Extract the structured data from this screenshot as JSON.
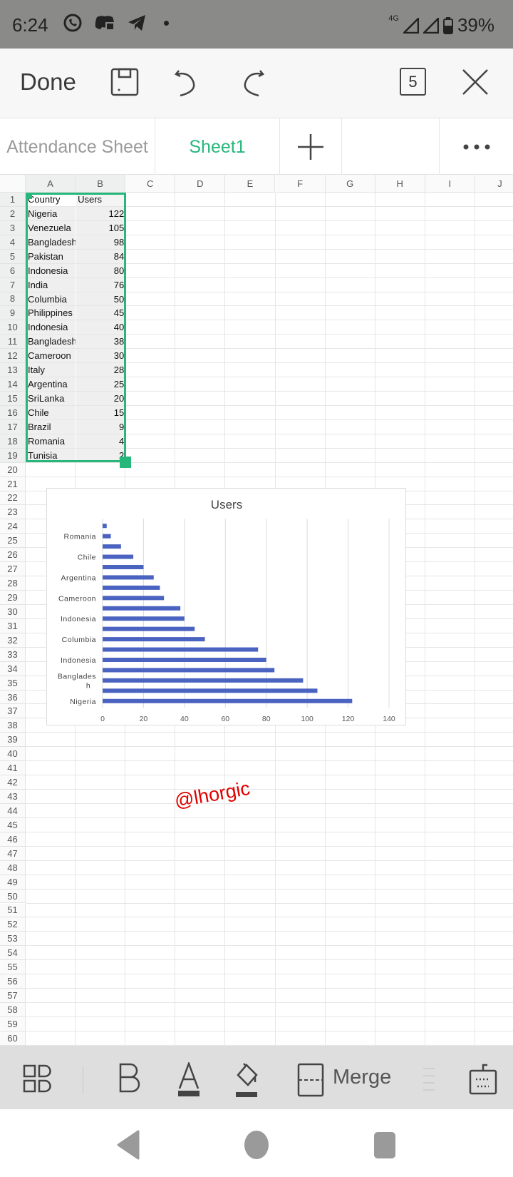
{
  "status_bar": {
    "time": "6:24",
    "network": "4G",
    "battery": "39%",
    "icons": [
      "whatsapp-icon",
      "discord-icon",
      "telegram-icon",
      "dot-icon",
      "signal-icon",
      "battery-icon"
    ]
  },
  "toolbar": {
    "done_label": "Done",
    "sheet_count": "5"
  },
  "tabs": [
    {
      "label": "Attendance Sheet",
      "active": false
    },
    {
      "label": "Sheet1",
      "active": true
    }
  ],
  "colors": {
    "accent": "#27b77b",
    "bar": "#4a62c0",
    "watermark": "#e00000"
  },
  "columns": [
    "A",
    "B",
    "C",
    "D",
    "E",
    "F",
    "G",
    "H",
    "I",
    "J"
  ],
  "rows": [
    "1",
    "2",
    "3",
    "4",
    "5",
    "6",
    "7",
    "8",
    "9",
    "10",
    "11",
    "12",
    "13",
    "14",
    "15",
    "16",
    "17",
    "18",
    "19",
    "20",
    "21",
    "22",
    "23",
    "24",
    "25",
    "26",
    "27",
    "28",
    "29",
    "30",
    "31",
    "32",
    "33",
    "34",
    "35",
    "36",
    "37",
    "38",
    "39",
    "40",
    "41",
    "42",
    "43",
    "44",
    "45",
    "46",
    "47",
    "48",
    "49",
    "50",
    "51",
    "52",
    "53",
    "54",
    "55",
    "56",
    "57",
    "58",
    "59",
    "60"
  ],
  "sheet": {
    "header": [
      "Country",
      "Users"
    ],
    "data": [
      [
        "Nigeria",
        "122"
      ],
      [
        "Venezuela",
        "105"
      ],
      [
        "Bangladesh",
        "98"
      ],
      [
        "Pakistan",
        "84"
      ],
      [
        "Indonesia",
        "80"
      ],
      [
        "India",
        "76"
      ],
      [
        "Columbia",
        "50"
      ],
      [
        "Philippines",
        "45"
      ],
      [
        "Indonesia",
        "40"
      ],
      [
        "Bangladesh",
        "38"
      ],
      [
        "Cameroon",
        "30"
      ],
      [
        "Italy",
        "28"
      ],
      [
        "Argentina",
        "25"
      ],
      [
        "SriLanka",
        "20"
      ],
      [
        "Chile",
        "15"
      ],
      [
        "Brazil",
        "9"
      ],
      [
        "Romania",
        "4"
      ],
      [
        "Tunisia",
        "2"
      ]
    ]
  },
  "chart_data": {
    "type": "bar",
    "orientation": "horizontal",
    "title": "Users",
    "categories": [
      "Nigeria",
      "Venezuela",
      "Bangladesh",
      "Pakistan",
      "Indonesia",
      "India",
      "Columbia",
      "Philippines",
      "Indonesia",
      "Bangladesh",
      "Cameroon",
      "Italy",
      "Argentina",
      "SriLanka",
      "Chile",
      "Brazil",
      "Romania",
      "Tunisia"
    ],
    "visible_category_labels": [
      "Nigeria",
      "",
      "Banglades h",
      "",
      "Indonesia",
      "",
      "Columbia",
      "",
      "Indonesia",
      "",
      "Cameroon",
      "",
      "Argentina",
      "",
      "Chile",
      "",
      "Romania",
      ""
    ],
    "values": [
      122,
      105,
      98,
      84,
      80,
      76,
      50,
      45,
      40,
      38,
      30,
      28,
      25,
      20,
      15,
      9,
      4,
      2
    ],
    "xticks": [
      "0",
      "20",
      "40",
      "60",
      "80",
      "100",
      "120",
      "140"
    ],
    "xlim": [
      0,
      140
    ],
    "grid": "vertical",
    "legend": "none"
  },
  "watermark": "@lhorgic",
  "bottom_toolbar": {
    "merge_label": "Merge"
  }
}
